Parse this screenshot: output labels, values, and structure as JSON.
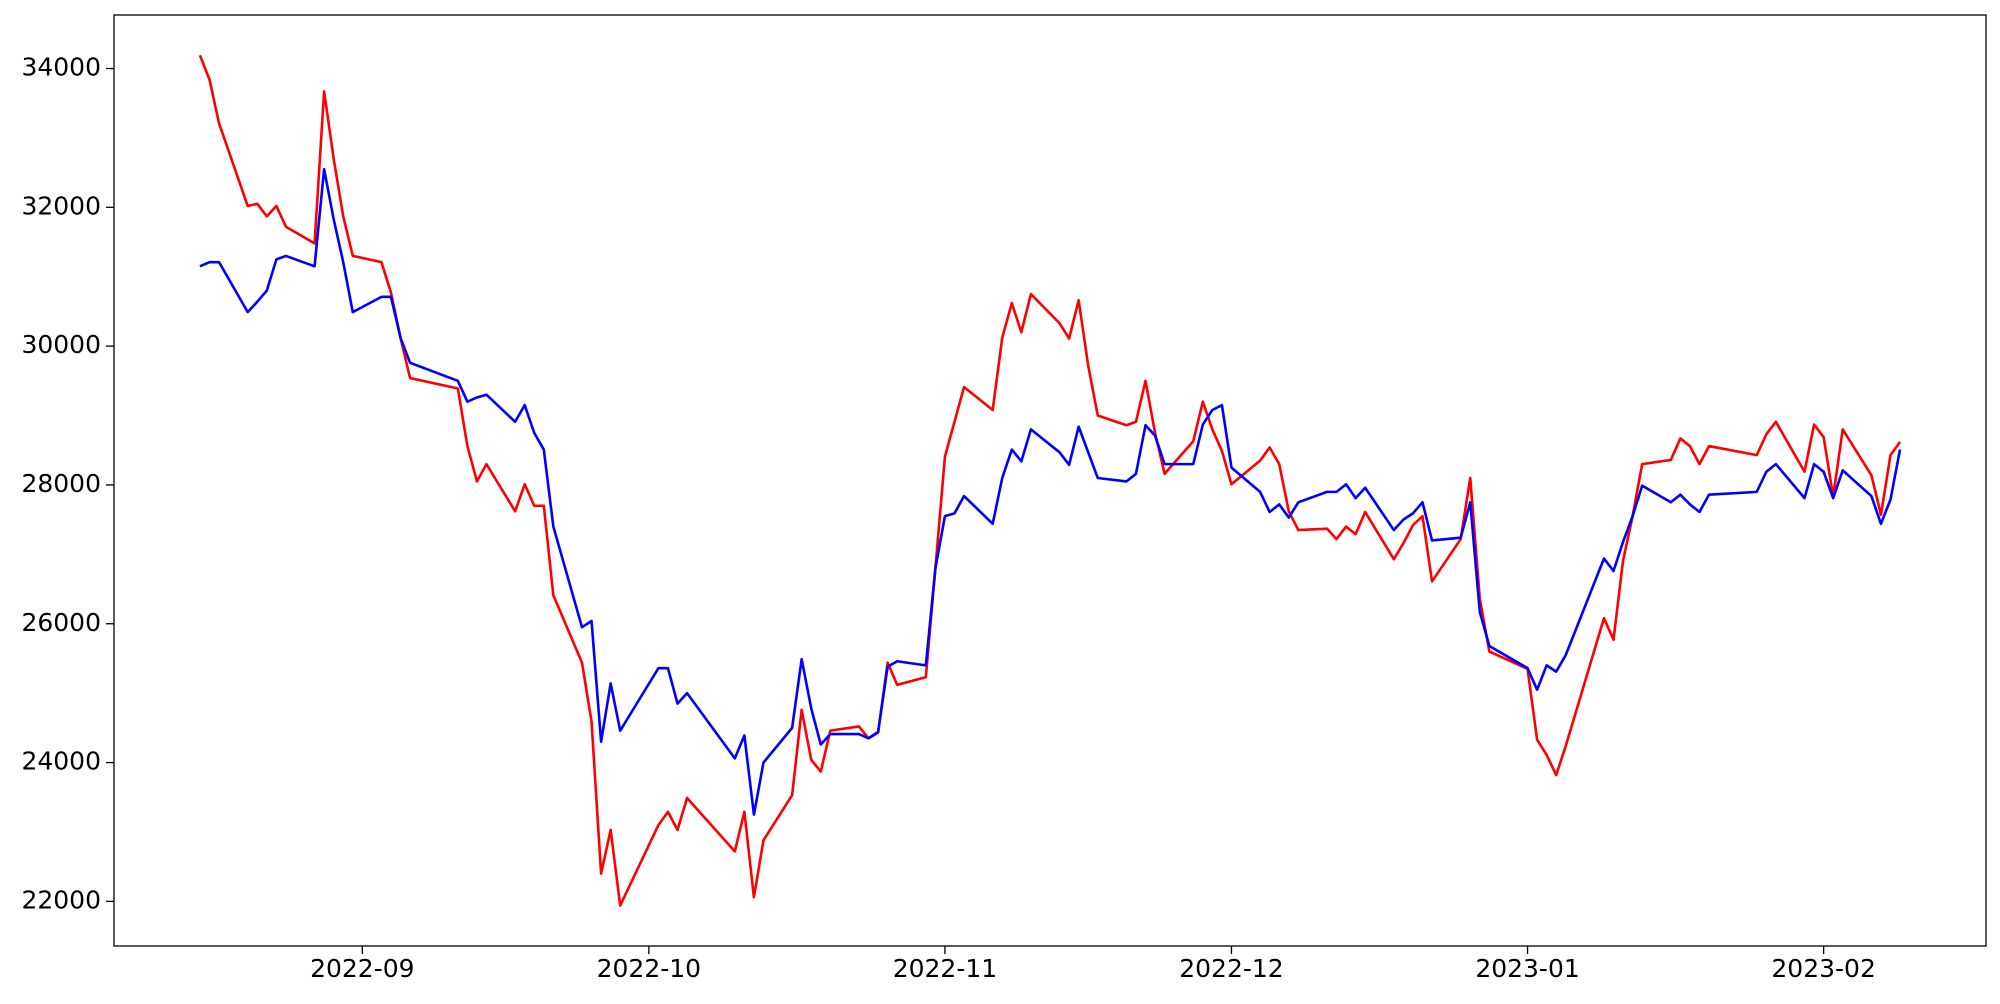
{
  "chart_data": {
    "type": "line",
    "x": [
      "2022-08-15",
      "2022-08-16",
      "2022-08-17",
      "2022-08-20",
      "2022-08-21",
      "2022-08-22",
      "2022-08-23",
      "2022-08-24",
      "2022-08-27",
      "2022-08-28",
      "2022-08-29",
      "2022-08-30",
      "2022-08-31",
      "2022-09-03",
      "2022-09-04",
      "2022-09-05",
      "2022-09-06",
      "2022-09-11",
      "2022-09-12",
      "2022-09-13",
      "2022-09-14",
      "2022-09-17",
      "2022-09-18",
      "2022-09-19",
      "2022-09-20",
      "2022-09-21",
      "2022-09-24",
      "2022-09-25",
      "2022-09-26",
      "2022-09-27",
      "2022-09-28",
      "2022-10-02",
      "2022-10-03",
      "2022-10-04",
      "2022-10-05",
      "2022-10-10",
      "2022-10-11",
      "2022-10-12",
      "2022-10-13",
      "2022-10-16",
      "2022-10-17",
      "2022-10-18",
      "2022-10-19",
      "2022-10-20",
      "2022-10-23",
      "2022-10-24",
      "2022-10-25",
      "2022-10-26",
      "2022-10-27",
      "2022-10-30",
      "2022-10-31",
      "2022-11-01",
      "2022-11-02",
      "2022-11-03",
      "2022-11-06",
      "2022-11-07",
      "2022-11-08",
      "2022-11-09",
      "2022-11-10",
      "2022-11-13",
      "2022-11-14",
      "2022-11-15",
      "2022-11-16",
      "2022-11-17",
      "2022-11-20",
      "2022-11-21",
      "2022-11-22",
      "2022-11-23",
      "2022-11-24",
      "2022-11-27",
      "2022-11-28",
      "2022-11-29",
      "2022-11-30",
      "2022-12-01",
      "2022-12-04",
      "2022-12-05",
      "2022-12-06",
      "2022-12-07",
      "2022-12-08",
      "2022-12-11",
      "2022-12-12",
      "2022-12-13",
      "2022-12-14",
      "2022-12-15",
      "2022-12-18",
      "2022-12-19",
      "2022-12-20",
      "2022-12-21",
      "2022-12-22",
      "2022-12-25",
      "2022-12-26",
      "2022-12-27",
      "2022-12-28",
      "2023-01-01",
      "2023-01-02",
      "2023-01-03",
      "2023-01-04",
      "2023-01-05",
      "2023-01-09",
      "2023-01-10",
      "2023-01-11",
      "2023-01-12",
      "2023-01-13",
      "2023-01-16",
      "2023-01-17",
      "2023-01-18",
      "2023-01-19",
      "2023-01-20",
      "2023-01-25",
      "2023-01-26",
      "2023-01-27",
      "2023-01-30",
      "2023-01-31",
      "2023-02-01",
      "2023-02-02",
      "2023-02-03",
      "2023-02-06",
      "2023-02-07",
      "2023-02-08",
      "2023-02-09"
    ],
    "series": [
      {
        "color": "#ff0000",
        "values": [
          34190,
          33840,
          33210,
          32020,
          32050,
          31870,
          32020,
          31720,
          31480,
          33670,
          32700,
          31870,
          31300,
          31210,
          30770,
          30120,
          29540,
          29390,
          28560,
          28050,
          28300,
          27620,
          28010,
          27700,
          27700,
          26410,
          25440,
          24590,
          22400,
          23030,
          21940,
          23100,
          23290,
          23030,
          23490,
          22720,
          23290,
          22060,
          22880,
          23530,
          24760,
          24040,
          23870,
          24460,
          24520,
          24350,
          24430,
          25440,
          25120,
          25230,
          26800,
          28410,
          28910,
          29410,
          29080,
          30120,
          30620,
          30200,
          30750,
          30330,
          30110,
          30660,
          29720,
          29000,
          28860,
          28910,
          29500,
          28750,
          28160,
          28630,
          29200,
          28800,
          28490,
          28010,
          28350,
          28540,
          28300,
          27620,
          27350,
          27370,
          27220,
          27400,
          27290,
          27610,
          26930,
          27160,
          27420,
          27550,
          26610,
          27220,
          28100,
          26360,
          25600,
          25350,
          24330,
          24110,
          23820,
          24240,
          26080,
          25770,
          26910,
          27550,
          28300,
          28360,
          28670,
          28560,
          28300,
          28560,
          28430,
          28730,
          28910,
          28190,
          28870,
          28690,
          27830,
          28800,
          28140,
          27570,
          28430,
          28620
        ]
      },
      {
        "color": "#0000ff",
        "values": [
          31150,
          31210,
          31210,
          30490,
          30640,
          30800,
          31250,
          31300,
          31150,
          32550,
          31830,
          31210,
          30490,
          30710,
          30710,
          30120,
          29760,
          29500,
          29200,
          29260,
          29300,
          28910,
          29150,
          28750,
          28510,
          27400,
          25950,
          26040,
          24300,
          25140,
          24460,
          25360,
          25360,
          24850,
          25000,
          24060,
          24390,
          23250,
          24000,
          24500,
          25490,
          24780,
          24260,
          24410,
          24410,
          24350,
          24440,
          25380,
          25460,
          25400,
          26800,
          27550,
          27590,
          27840,
          27440,
          28100,
          28510,
          28340,
          28800,
          28470,
          28290,
          28840,
          28470,
          28100,
          28050,
          28160,
          28860,
          28710,
          28300,
          28300,
          28870,
          29080,
          29150,
          28250,
          27900,
          27610,
          27720,
          27530,
          27750,
          27900,
          27900,
          28010,
          27810,
          27960,
          27350,
          27500,
          27590,
          27750,
          27200,
          27240,
          27750,
          26170,
          25680,
          25360,
          25050,
          25400,
          25310,
          25550,
          26940,
          26760,
          27180,
          27550,
          27990,
          27750,
          27860,
          27720,
          27610,
          27860,
          27900,
          28190,
          28300,
          27810,
          28300,
          28190,
          27810,
          28210,
          27840,
          27440,
          27790,
          28510
        ]
      }
    ],
    "xlim": [
      "2022-08-06",
      "2023-02-18"
    ],
    "xticks": [
      {
        "value": "2022-09-01",
        "label": "2022-09"
      },
      {
        "value": "2022-10-01",
        "label": "2022-10"
      },
      {
        "value": "2022-11-01",
        "label": "2022-11"
      },
      {
        "value": "2022-12-01",
        "label": "2022-12"
      },
      {
        "value": "2023-01-01",
        "label": "2023-01"
      },
      {
        "value": "2023-02-01",
        "label": "2023-02"
      }
    ],
    "ylim": [
      21357,
      34771
    ],
    "yticks": [
      22000,
      24000,
      26000,
      28000,
      30000,
      32000,
      34000
    ],
    "grid": false
  }
}
